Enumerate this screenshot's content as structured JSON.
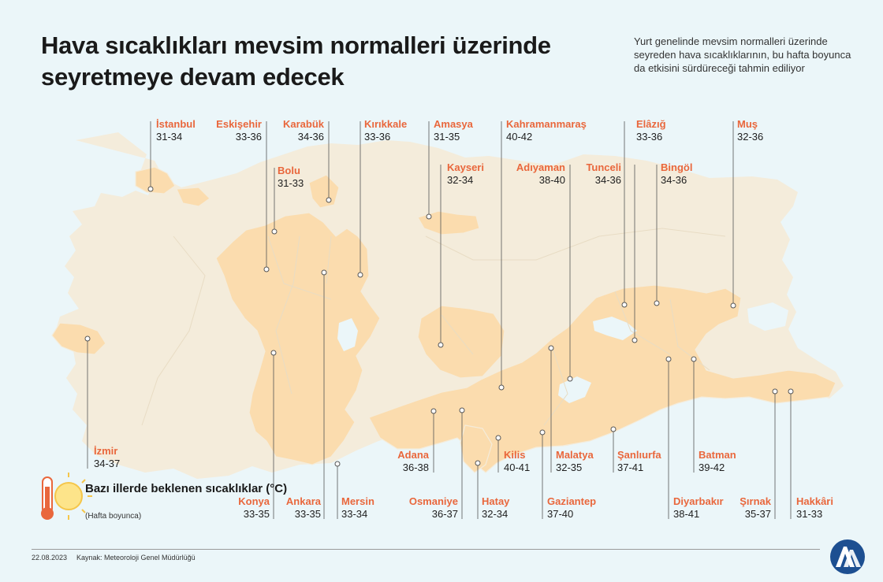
{
  "title": "Hava sıcaklıkları mevsim normalleri üzerinde seyretmeye devam edecek",
  "subtitle": "Yurt genelinde mevsim normalleri üzerinde seyreden hava sıcaklıklarının, bu hafta boyunca da etkisini sürdüreceği tahmin ediliyor",
  "legend": {
    "title": "Bazı illerde beklenen sıcaklıklar (°C)",
    "subtitle": "(Hafta boyunca)",
    "icon": "thermometer-sun-icon"
  },
  "colors": {
    "background": "#ebf6f9",
    "land": "#f4ecdb",
    "highlight": "#fbdcae",
    "accent": "#e9673c"
  },
  "provinces": [
    {
      "name": "İstanbul",
      "range": "31-34"
    },
    {
      "name": "Eskişehir",
      "range": "33-36"
    },
    {
      "name": "Karabük",
      "range": "34-36"
    },
    {
      "name": "Kırıkkale",
      "range": "33-36"
    },
    {
      "name": "Amasya",
      "range": "31-35"
    },
    {
      "name": "Kahramanmaraş",
      "range": "40-42"
    },
    {
      "name": "Elâzığ",
      "range": "33-36"
    },
    {
      "name": "Muş",
      "range": "32-36"
    },
    {
      "name": "Bolu",
      "range": "31-33"
    },
    {
      "name": "Kayseri",
      "range": "32-34"
    },
    {
      "name": "Adıyaman",
      "range": "38-40"
    },
    {
      "name": "Tunceli",
      "range": "34-36"
    },
    {
      "name": "Bingöl",
      "range": "34-36"
    },
    {
      "name": "İzmir",
      "range": "34-37"
    },
    {
      "name": "Adana",
      "range": "36-38"
    },
    {
      "name": "Kilis",
      "range": "40-41"
    },
    {
      "name": "Malatya",
      "range": "32-35"
    },
    {
      "name": "Şanlıurfa",
      "range": "37-41"
    },
    {
      "name": "Batman",
      "range": "39-42"
    },
    {
      "name": "Konya",
      "range": "33-35"
    },
    {
      "name": "Ankara",
      "range": "33-35"
    },
    {
      "name": "Mersin",
      "range": "33-34"
    },
    {
      "name": "Osmaniye",
      "range": "36-37"
    },
    {
      "name": "Hatay",
      "range": "32-34"
    },
    {
      "name": "Gaziantep",
      "range": "37-40"
    },
    {
      "name": "Diyarbakır",
      "range": "38-41"
    },
    {
      "name": "Şırnak",
      "range": "35-37"
    },
    {
      "name": "Hakkâri",
      "range": "31-33"
    }
  ],
  "footer": {
    "date": "22.08.2023",
    "source": "Kaynak: Meteoroloji Genel Müdürlüğü"
  }
}
